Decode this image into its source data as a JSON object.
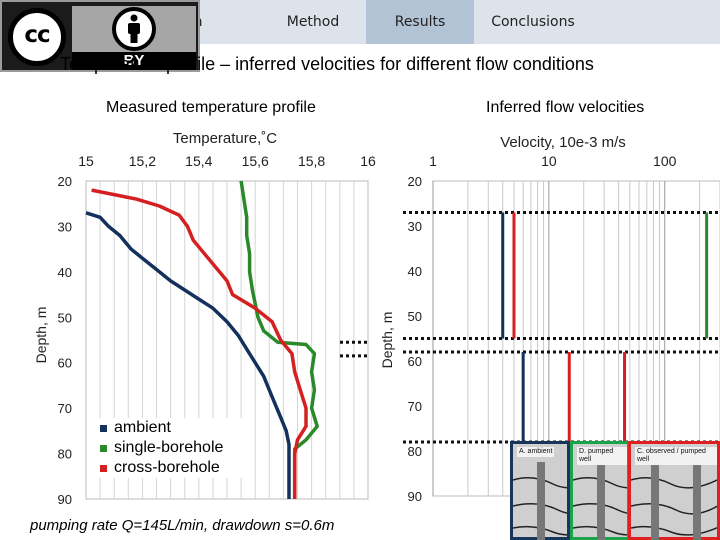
{
  "nav": {
    "tabs": [
      {
        "label": "ction",
        "active": false
      },
      {
        "label": "Method",
        "active": false
      },
      {
        "label": "Results",
        "active": true
      },
      {
        "label": "Conclusions",
        "active": false
      }
    ],
    "bg": "#dde3ea",
    "active_bg": "#b3c3d6"
  },
  "license": {
    "cc": "cc",
    "by": "BY"
  },
  "title": "Temperature profile – inferred velocities for different flow conditions",
  "caption": "pumping rate Q=145L/min, drawdown s=0.6m",
  "insets": [
    {
      "label": "A. ambient",
      "color": "#16375a"
    },
    {
      "label": "D. pumped well",
      "color": "#19a34a"
    },
    {
      "label": "C. observed / pumped well",
      "color": "#e02020"
    }
  ],
  "chart_data": [
    {
      "type": "line",
      "subtitle": "Measured temperature profile",
      "xlabel": "Temperature,˚C",
      "ylabel": "Depth, m",
      "xlim": [
        15,
        16
      ],
      "ylim": [
        20,
        90
      ],
      "x_ticks": [
        "15",
        "15,2",
        "15,4",
        "15,6",
        "15,8",
        "16"
      ],
      "y_ticks": [
        "20",
        "30",
        "40",
        "50",
        "60",
        "70",
        "80",
        "90"
      ],
      "x_axis_position": "top",
      "y_axis_inverted": true,
      "grid": true,
      "legend_position": "bottom-left",
      "series": [
        {
          "name": "ambient",
          "color": "#14305c",
          "points": [
            [
              15.0,
              27
            ],
            [
              15.05,
              28
            ],
            [
              15.08,
              30
            ],
            [
              15.12,
              32
            ],
            [
              15.16,
              35
            ],
            [
              15.2,
              37
            ],
            [
              15.24,
              39
            ],
            [
              15.3,
              42
            ],
            [
              15.35,
              44
            ],
            [
              15.4,
              46
            ],
            [
              15.45,
              48
            ],
            [
              15.5,
              51
            ],
            [
              15.54,
              54
            ],
            [
              15.57,
              57
            ],
            [
              15.6,
              60
            ],
            [
              15.63,
              63
            ],
            [
              15.65,
              66
            ],
            [
              15.67,
              69
            ],
            [
              15.69,
              72
            ],
            [
              15.71,
              75
            ],
            [
              15.72,
              78
            ],
            [
              15.72,
              81
            ],
            [
              15.72,
              84
            ],
            [
              15.72,
              87
            ],
            [
              15.72,
              90
            ]
          ]
        },
        {
          "name": "single-borehole",
          "color": "#2a8a2a",
          "points": [
            [
              15.55,
              20
            ],
            [
              15.56,
              24
            ],
            [
              15.57,
              28
            ],
            [
              15.57,
              32
            ],
            [
              15.58,
              36
            ],
            [
              15.58,
              40
            ],
            [
              15.59,
              44
            ],
            [
              15.6,
              47
            ],
            [
              15.61,
              50
            ],
            [
              15.63,
              53
            ],
            [
              15.68,
              55.5
            ],
            [
              15.78,
              56
            ],
            [
              15.81,
              58
            ],
            [
              15.8,
              62
            ],
            [
              15.81,
              66
            ],
            [
              15.8,
              70
            ],
            [
              15.82,
              74
            ],
            [
              15.78,
              77
            ],
            [
              15.74,
              79
            ],
            [
              15.74,
              82
            ],
            [
              15.74,
              86
            ],
            [
              15.74,
              90
            ]
          ]
        },
        {
          "name": "cross-borehole",
          "color": "#d42020",
          "points": [
            [
              15.02,
              22
            ],
            [
              15.1,
              23
            ],
            [
              15.18,
              24
            ],
            [
              15.26,
              25.5
            ],
            [
              15.33,
              27.5
            ],
            [
              15.36,
              30
            ],
            [
              15.38,
              33
            ],
            [
              15.42,
              36
            ],
            [
              15.46,
              39
            ],
            [
              15.5,
              42
            ],
            [
              15.52,
              45
            ],
            [
              15.6,
              48
            ],
            [
              15.66,
              51
            ],
            [
              15.69,
              55
            ],
            [
              15.73,
              58
            ],
            [
              15.74,
              62
            ],
            [
              15.76,
              66
            ],
            [
              15.78,
              70
            ],
            [
              15.78,
              74
            ],
            [
              15.75,
              77
            ],
            [
              15.74,
              80
            ],
            [
              15.74,
              84
            ],
            [
              15.74,
              87
            ],
            [
              15.74,
              90
            ]
          ]
        }
      ]
    },
    {
      "type": "line",
      "subtitle": "Inferred flow velocities",
      "xlabel": "Velocity, 10e-3 m/s",
      "ylabel": "Depth, m",
      "xlim": [
        1,
        300
      ],
      "x_scale": "log",
      "ylim": [
        20,
        90
      ],
      "x_ticks": [
        "1",
        "10",
        "100"
      ],
      "y_ticks": [
        "20",
        "30",
        "40",
        "50",
        "60",
        "70",
        "80",
        "90"
      ],
      "x_axis_position": "top",
      "y_axis_inverted": true,
      "grid": true,
      "zone_boundaries_depth": [
        27,
        55,
        58,
        78
      ],
      "series": [
        {
          "name": "ambient",
          "color": "#14305c",
          "segments": [
            [
              4.0,
              27,
              55
            ],
            [
              6.0,
              58,
              78
            ]
          ]
        },
        {
          "name": "single-borehole",
          "color": "#2a8a2a",
          "segments": [
            [
              230,
              27,
              55
            ]
          ]
        },
        {
          "name": "cross-borehole",
          "color": "#d42020",
          "segments": [
            [
              5.0,
              27,
              55
            ],
            [
              15,
              58,
              78
            ],
            [
              45,
              58,
              78
            ]
          ]
        }
      ]
    }
  ]
}
